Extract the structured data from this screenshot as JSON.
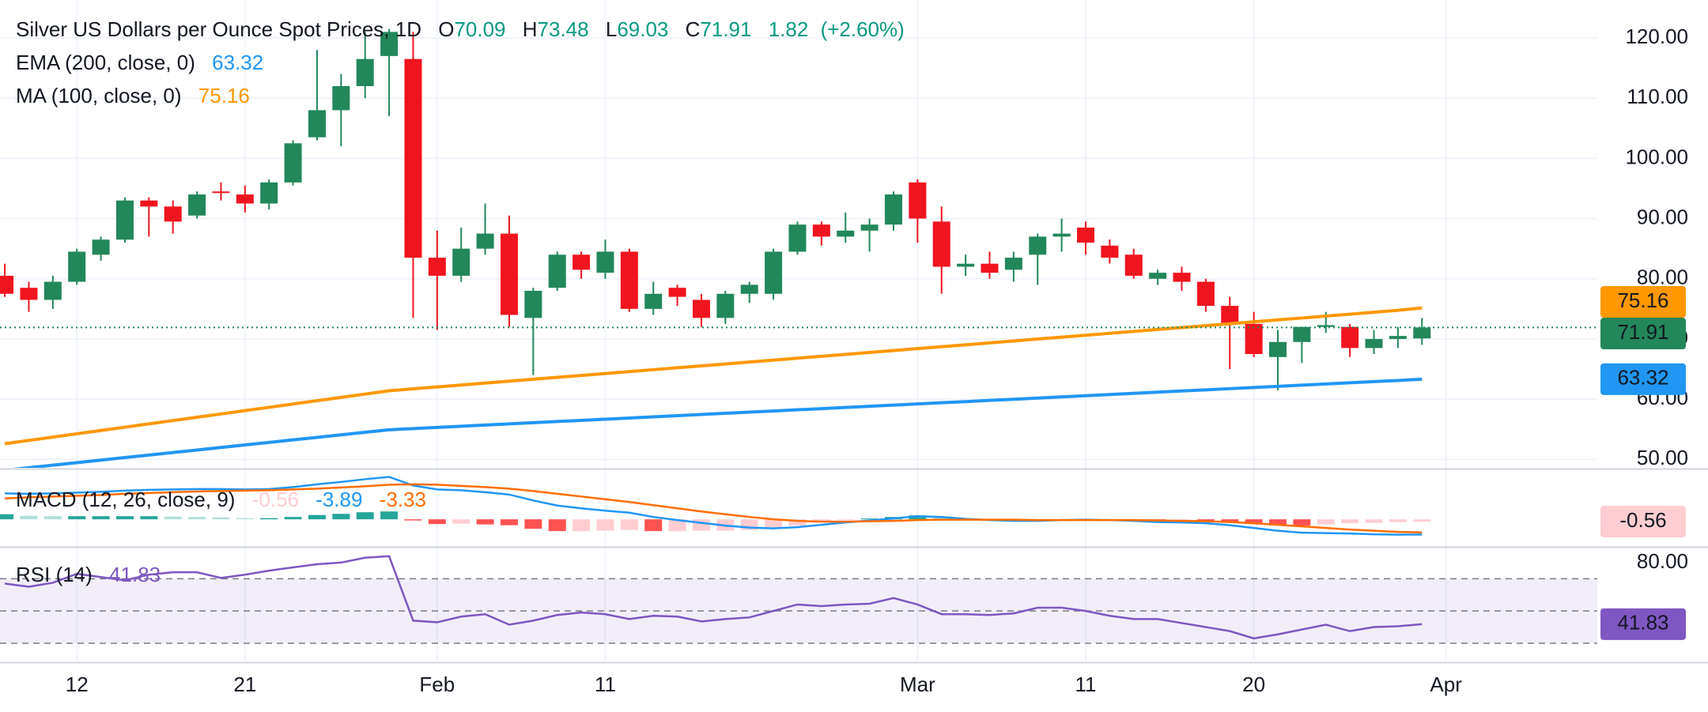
{
  "chart_data": [
    {
      "type": "candlestick",
      "title": "Silver US Dollars per Ounce Spot Prices, 1D",
      "ohlc_labels": [
        "O",
        "H",
        "L",
        "C"
      ],
      "open": [
        80.5,
        78.5,
        76.5,
        79.5,
        84,
        86.5,
        93,
        92,
        90.5,
        94.5,
        94,
        92.5,
        96,
        103.5,
        108,
        112,
        117,
        116.5,
        83.5,
        80.5,
        85,
        87.5,
        73.5,
        78.5,
        84,
        81,
        84.5,
        75,
        78.5,
        76.5,
        73.5,
        77.5,
        77.5,
        84.5,
        89,
        87,
        88,
        89,
        96,
        89.5,
        82,
        82.5,
        81.5,
        84,
        87,
        88.5,
        85.5,
        84,
        80,
        81,
        79.5,
        75.5,
        72.5,
        67,
        69.5,
        72,
        72,
        68.5,
        70,
        70.09
      ],
      "high": [
        82.5,
        79.5,
        80.5,
        85,
        87,
        93.5,
        93.5,
        93,
        94.5,
        96,
        95.5,
        96.5,
        103,
        118,
        114,
        121,
        121.5,
        121,
        88,
        88.5,
        92.5,
        90.5,
        78.5,
        84.5,
        84.5,
        86.5,
        85,
        79.5,
        79,
        77.5,
        78,
        79.5,
        85,
        89.5,
        89.5,
        91,
        90,
        94.5,
        96.5,
        92,
        84,
        84.5,
        84.5,
        87.5,
        90,
        89.5,
        86.5,
        85,
        81.5,
        82,
        80,
        77,
        74.5,
        71.5,
        72,
        74.5,
        72.5,
        71.5,
        72,
        73.48
      ],
      "low": [
        77,
        74.5,
        75,
        79,
        83,
        86,
        87,
        87.5,
        90,
        93,
        91,
        91.5,
        95.5,
        103,
        102,
        110,
        107,
        73.5,
        71.5,
        79.5,
        84,
        72,
        64,
        78,
        80,
        80,
        74.5,
        74,
        75.5,
        72,
        72.5,
        76,
        76.5,
        84,
        85.5,
        86,
        84.5,
        88,
        86,
        77.5,
        80.5,
        80,
        79.5,
        79,
        84.5,
        84,
        82.5,
        80,
        79,
        78,
        74.5,
        65,
        67,
        61.5,
        66,
        71,
        67,
        67.5,
        68.5,
        69.03
      ],
      "close": [
        77.5,
        76.5,
        79.5,
        84.5,
        86.5,
        93,
        92,
        89.5,
        94,
        94.3,
        92.5,
        96,
        102.5,
        108,
        112,
        116.5,
        121,
        83.5,
        80.5,
        85,
        87.5,
        74,
        78,
        84,
        81.5,
        84.5,
        75,
        77.5,
        77,
        73.5,
        77.5,
        79,
        84.5,
        89,
        87,
        88,
        89,
        94,
        90,
        82,
        82.5,
        81,
        83.5,
        87,
        87.5,
        86,
        83.5,
        80.5,
        81,
        79.5,
        75.5,
        72.5,
        67.5,
        69.5,
        72,
        72.3,
        68.5,
        70,
        70.5,
        71.91
      ],
      "change": 1.82,
      "change_pct": {
        "value": 2.6,
        "label": "(+2.60%)"
      },
      "up_color": "#22875a",
      "down_color": "#f0141e",
      "header_value_color": "#089981",
      "series": [
        {
          "name": "EMA (200, close, 0)",
          "color": "#2196f3",
          "values": [
            48.2,
            48.62,
            49.04,
            49.46,
            49.88,
            50.3,
            50.72,
            51.14,
            51.56,
            51.98,
            52.4,
            52.82,
            53.24,
            53.66,
            54.08,
            54.5,
            54.92,
            55.12,
            55.31,
            55.51,
            55.7,
            55.9,
            56.09,
            56.29,
            56.48,
            56.68,
            56.87,
            57.07,
            57.26,
            57.46,
            57.65,
            57.85,
            58.04,
            58.24,
            58.43,
            58.63,
            58.82,
            59.02,
            59.21,
            59.41,
            59.6,
            59.8,
            59.99,
            60.19,
            60.38,
            60.58,
            60.77,
            60.97,
            61.16,
            61.36,
            61.55,
            61.75,
            61.94,
            62.14,
            62.33,
            62.53,
            62.72,
            62.92,
            63.11,
            63.32
          ]
        },
        {
          "name": "MA (100, close, 0)",
          "color": "#ff9800",
          "values": [
            52.6,
            53.15,
            53.7,
            54.25,
            54.8,
            55.35,
            55.9,
            56.45,
            57.0,
            57.55,
            58.1,
            58.65,
            59.2,
            59.75,
            60.3,
            60.85,
            61.4,
            61.72,
            62.04,
            62.35,
            62.67,
            62.99,
            63.31,
            63.63,
            63.94,
            64.26,
            64.58,
            64.9,
            65.22,
            65.53,
            65.85,
            66.17,
            66.49,
            66.81,
            67.12,
            67.44,
            67.76,
            68.08,
            68.4,
            68.71,
            69.03,
            69.35,
            69.67,
            69.99,
            70.3,
            70.62,
            70.94,
            71.26,
            71.58,
            71.89,
            72.21,
            72.53,
            72.85,
            73.17,
            73.48,
            73.8,
            74.12,
            74.44,
            74.76,
            75.16
          ]
        }
      ],
      "xlim": [
        -0.2,
        66.3
      ],
      "xticks": [
        {
          "value": 3,
          "label": "12"
        },
        {
          "value": 10,
          "label": "21"
        },
        {
          "value": 18,
          "label": "Feb"
        },
        {
          "value": 25,
          "label": "11"
        },
        {
          "value": 38,
          "label": "Mar"
        },
        {
          "value": 45,
          "label": "11"
        },
        {
          "value": 52,
          "label": "20"
        },
        {
          "value": 60,
          "label": "Apr"
        }
      ],
      "ylim": [
        48.6,
        126.3
      ],
      "yticks": [
        {
          "value": 50,
          "label": "50.00"
        },
        {
          "value": 60,
          "label": "60.00"
        },
        {
          "value": 70,
          "label": "70.00"
        },
        {
          "value": 80,
          "label": "80.00"
        },
        {
          "value": 90,
          "label": "90.00"
        },
        {
          "value": 100,
          "label": "100.00"
        },
        {
          "value": 110,
          "label": "110.00"
        },
        {
          "value": 120,
          "label": "120.00"
        }
      ],
      "grid": true,
      "last_price_line": true
    },
    {
      "type": "macd",
      "title": "MACD (12, 26, close, 9)",
      "histogram": {
        "colors": [
          "#26a69a",
          "#b2dfdb",
          "#ffcdd2",
          "#ff5252"
        ],
        "values": [
          1.3,
          0.9,
          0.8,
          0.8,
          0.8,
          0.8,
          0.8,
          0.7,
          0.6,
          0.5,
          0.3,
          0.3,
          0.6,
          1.1,
          1.4,
          1.8,
          2.0,
          -0.3,
          -1.2,
          -1.1,
          -1.3,
          -1.5,
          -2.4,
          -3.0,
          -3.0,
          -2.9,
          -2.7,
          -3.0,
          -3.0,
          -2.9,
          -2.9,
          -2.7,
          -2.3,
          -1.6,
          -0.8,
          -0.2,
          0.2,
          0.6,
          1.0,
          0.7,
          0.2,
          -0.1,
          -0.3,
          -0.2,
          0.0,
          0.1,
          0.0,
          -0.2,
          -0.4,
          -0.4,
          -0.5,
          -0.8,
          -1.2,
          -1.5,
          -1.6,
          -1.3,
          -1.0,
          -0.9,
          -0.7,
          -0.56
        ]
      },
      "macd": {
        "color": "#2196f3",
        "values": [
          6.6,
          6.5,
          6.6,
          6.8,
          7.0,
          7.3,
          7.5,
          7.6,
          7.7,
          7.7,
          7.6,
          7.7,
          8.2,
          8.9,
          9.5,
          10.2,
          10.8,
          8.6,
          7.6,
          7.4,
          6.9,
          6.3,
          4.8,
          3.5,
          2.8,
          2.2,
          1.7,
          0.6,
          -0.2,
          -0.9,
          -1.6,
          -2.1,
          -2.3,
          -2.0,
          -1.4,
          -0.8,
          -0.3,
          0.2,
          0.8,
          0.6,
          0.1,
          -0.2,
          -0.4,
          -0.4,
          -0.2,
          -0.1,
          -0.2,
          -0.4,
          -0.7,
          -0.8,
          -1.0,
          -1.5,
          -2.2,
          -2.9,
          -3.4,
          -3.5,
          -3.6,
          -3.8,
          -3.9,
          -3.89
        ]
      },
      "signal": {
        "color": "#ff6d00",
        "values": [
          5.3,
          5.6,
          5.8,
          6.0,
          6.2,
          6.5,
          6.7,
          6.9,
          7.1,
          7.2,
          7.3,
          7.4,
          7.6,
          7.8,
          8.1,
          8.4,
          8.8,
          8.9,
          8.8,
          8.5,
          8.2,
          7.8,
          7.2,
          6.5,
          5.8,
          5.1,
          4.4,
          3.6,
          2.8,
          2.0,
          1.3,
          0.6,
          0.0,
          -0.4,
          -0.6,
          -0.6,
          -0.5,
          -0.4,
          -0.2,
          -0.1,
          -0.1,
          -0.1,
          -0.1,
          -0.2,
          -0.2,
          -0.2,
          -0.2,
          -0.2,
          -0.3,
          -0.4,
          -0.5,
          -0.7,
          -1.0,
          -1.4,
          -1.8,
          -2.2,
          -2.6,
          -2.9,
          -3.2,
          -3.33
        ]
      },
      "ylim": [
        -6.4,
        12.5
      ]
    },
    {
      "type": "rsi",
      "title": "RSI (14)",
      "color": "#7e57c2",
      "values": [
        67,
        65,
        67.5,
        73,
        71,
        69,
        72.5,
        74,
        74,
        70.5,
        72.5,
        75,
        77,
        79,
        80,
        83,
        84,
        44,
        43,
        46.5,
        48,
        41.5,
        44,
        47.5,
        49,
        48,
        45,
        47,
        46.5,
        43.5,
        45,
        46,
        50,
        54,
        53,
        54,
        54.5,
        58,
        54,
        48,
        48,
        47.5,
        48.5,
        52,
        52,
        50,
        47,
        45,
        45,
        42.5,
        40,
        37.5,
        33,
        35.5,
        38.5,
        41.5,
        37.5,
        40,
        40.5,
        41.83
      ],
      "ylim": [
        19.2,
        87.8
      ],
      "yticks": [
        {
          "value": 80,
          "label": "80.00"
        }
      ],
      "hlines": [
        70,
        50,
        30
      ],
      "band_color": "#7e57c2"
    }
  ]
}
